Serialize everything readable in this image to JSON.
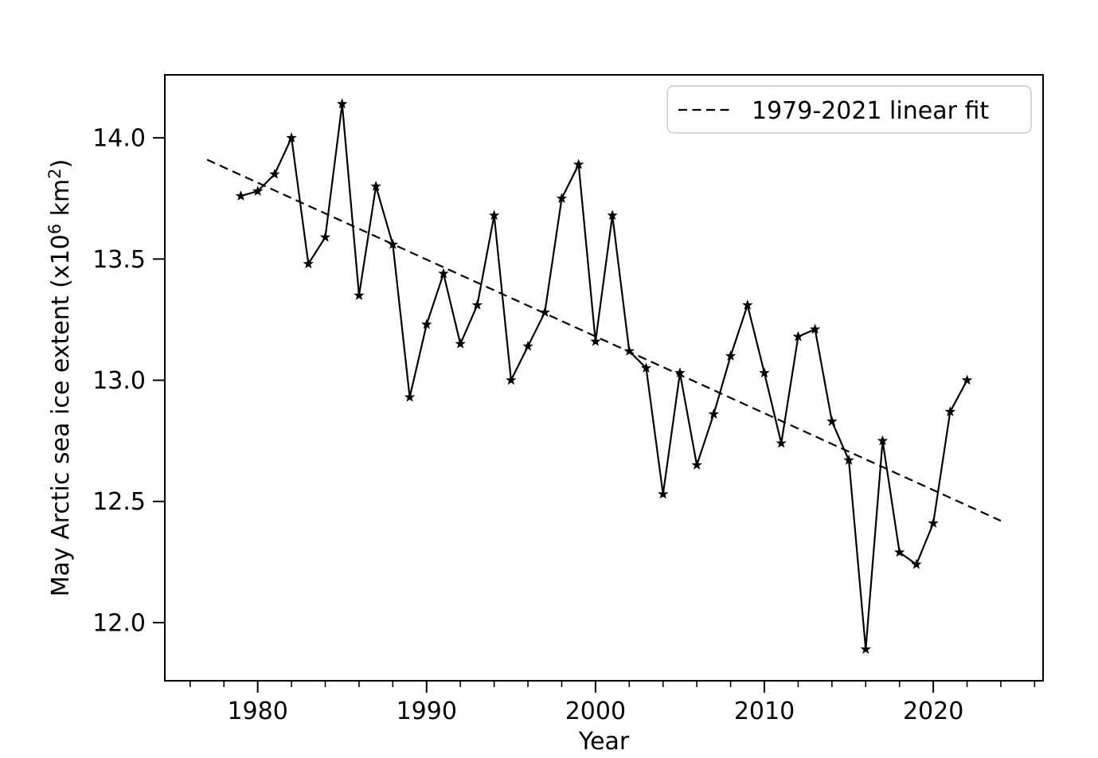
{
  "figure": {
    "background": "#ffffff",
    "line_color": "#000000",
    "legend_border_color": "#cccccc"
  },
  "chart_data": {
    "type": "line",
    "title": "",
    "xlabel": "Year",
    "ylabel": "May Arctic sea ice extent (x10⁶ km²)",
    "ylabel_parts": [
      {
        "t": "May Arctic sea ice extent (x10",
        "sup": false
      },
      {
        "t": "6",
        "sup": true
      },
      {
        "t": " km",
        "sup": false
      },
      {
        "t": "2",
        "sup": true
      },
      {
        "t": ")",
        "sup": false
      }
    ],
    "xlim": [
      1974.5,
      2026.5
    ],
    "ylim": [
      11.76,
      14.26
    ],
    "grid": false,
    "x_ticks": {
      "values": [
        1980,
        1990,
        2000,
        2010,
        2020
      ],
      "labels": [
        "1980",
        "1990",
        "2000",
        "2010",
        "2020"
      ],
      "minor_step": 2,
      "minor_range": [
        1976,
        2026
      ]
    },
    "y_ticks": {
      "values": [
        12.0,
        12.5,
        13.0,
        13.5,
        14.0
      ],
      "labels": [
        "12.0",
        "12.5",
        "13.0",
        "13.5",
        "14.0"
      ]
    },
    "legend": {
      "position": "upper right",
      "entries": [
        {
          "label": "1979-2021 linear fit",
          "line_style": "dashed",
          "color": "#000000"
        }
      ]
    },
    "series": [
      {
        "name": "May Arctic sea ice extent",
        "marker": "star",
        "line_style": "solid",
        "color": "#000000",
        "x": [
          1979,
          1980,
          1981,
          1982,
          1983,
          1984,
          1985,
          1986,
          1987,
          1988,
          1989,
          1990,
          1991,
          1992,
          1993,
          1994,
          1995,
          1996,
          1997,
          1998,
          1999,
          2000,
          2001,
          2002,
          2003,
          2004,
          2005,
          2006,
          2007,
          2008,
          2009,
          2010,
          2011,
          2012,
          2013,
          2014,
          2015,
          2016,
          2017,
          2018,
          2019,
          2020,
          2021,
          2022
        ],
        "y": [
          13.76,
          13.78,
          13.85,
          14.0,
          13.48,
          13.59,
          14.14,
          13.35,
          13.8,
          13.56,
          12.93,
          13.23,
          13.44,
          13.15,
          13.31,
          13.68,
          13.0,
          13.14,
          13.28,
          13.75,
          13.89,
          13.16,
          13.68,
          13.12,
          13.05,
          12.53,
          13.03,
          12.65,
          12.86,
          13.1,
          13.31,
          13.03,
          12.74,
          13.18,
          13.21,
          12.83,
          12.67,
          11.89,
          12.75,
          12.29,
          12.24,
          12.41,
          12.87,
          13.0
        ]
      },
      {
        "name": "1979-2021 linear fit",
        "marker": "none",
        "line_style": "dashed",
        "color": "#000000",
        "x": [
          1977,
          2024
        ],
        "y": [
          13.91,
          12.42
        ]
      }
    ]
  }
}
